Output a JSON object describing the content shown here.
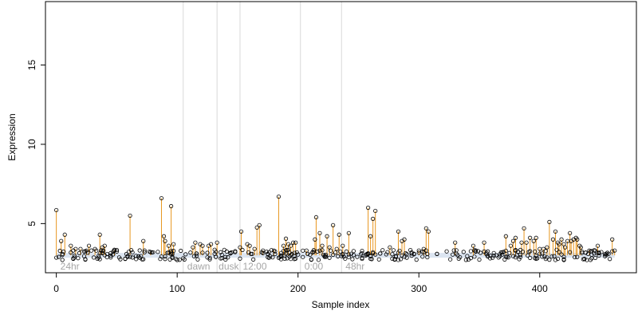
{
  "chart_data": {
    "type": "scatter",
    "title": "",
    "xlabel": "Sample index",
    "ylabel": "Expression",
    "xlim": [
      -9,
      480
    ],
    "ylim": [
      1.9,
      19.0
    ],
    "xticks": [
      0,
      100,
      200,
      300,
      400
    ],
    "yticks": [
      5,
      10,
      15
    ],
    "baseline": 3.0,
    "colors": {
      "stem": "#e8961e",
      "point_stroke": "#000000",
      "point_fill": "none",
      "phase_line": "#d9d9d9",
      "phase_text": "#a6a6a6",
      "band": "#9bb5d6"
    },
    "phase_boundaries": [
      0,
      105,
      133,
      152,
      202,
      236
    ],
    "phase_labels": [
      {
        "label": "24hr",
        "x": 2
      },
      {
        "label": "dawn",
        "x": 107
      },
      {
        "label": "dusk",
        "x": 133
      },
      {
        "label": "12:00",
        "x": 153
      },
      {
        "label": "0:00",
        "x": 204
      },
      {
        "label": "48hr",
        "x": 238
      }
    ],
    "highlight_points": [
      [
        0,
        5.85
      ],
      [
        4,
        3.9
      ],
      [
        7,
        4.3
      ],
      [
        12,
        3.6
      ],
      [
        16,
        3.4
      ],
      [
        20,
        3.4
      ],
      [
        25,
        3.3
      ],
      [
        27,
        3.6
      ],
      [
        32,
        3.4
      ],
      [
        36,
        4.3
      ],
      [
        38,
        3.5
      ],
      [
        40,
        3.6
      ],
      [
        48,
        3.3
      ],
      [
        61,
        5.5
      ],
      [
        72,
        3.9
      ],
      [
        78,
        3.2
      ],
      [
        87,
        6.6
      ],
      [
        89,
        4.2
      ],
      [
        90,
        3.9
      ],
      [
        93,
        3.6
      ],
      [
        95,
        6.1
      ],
      [
        97,
        3.7
      ],
      [
        113,
        3.5
      ],
      [
        115,
        3.8
      ],
      [
        119,
        3.7
      ],
      [
        121,
        3.6
      ],
      [
        126,
        3.6
      ],
      [
        128,
        3.7
      ],
      [
        133,
        3.8
      ],
      [
        152,
        3.5
      ],
      [
        153,
        4.5
      ],
      [
        158,
        3.7
      ],
      [
        160,
        3.6
      ],
      [
        164,
        3.4
      ],
      [
        166,
        4.75
      ],
      [
        168,
        4.9
      ],
      [
        171,
        3.3
      ],
      [
        180,
        3.3
      ],
      [
        184,
        6.7
      ],
      [
        186,
        3.0
      ],
      [
        188,
        3.6
      ],
      [
        190,
        4.05
      ],
      [
        192,
        3.7
      ],
      [
        194,
        3.6
      ],
      [
        196,
        3.8
      ],
      [
        198,
        3.8
      ],
      [
        207,
        3.3
      ],
      [
        212,
        3.2
      ],
      [
        214,
        4.0
      ],
      [
        215,
        5.4
      ],
      [
        218,
        4.4
      ],
      [
        220,
        3.6
      ],
      [
        224,
        4.2
      ],
      [
        226,
        3.5
      ],
      [
        229,
        4.9
      ],
      [
        232,
        3.4
      ],
      [
        234,
        4.3
      ],
      [
        237,
        3.6
      ],
      [
        242,
        4.4
      ],
      [
        258,
        6.0
      ],
      [
        260,
        4.2
      ],
      [
        262,
        5.3
      ],
      [
        264,
        5.8
      ],
      [
        276,
        3.5
      ],
      [
        283,
        4.5
      ],
      [
        286,
        3.9
      ],
      [
        288,
        4.0
      ],
      [
        300,
        3.3
      ],
      [
        304,
        3.4
      ],
      [
        306,
        4.7
      ],
      [
        308,
        4.5
      ],
      [
        330,
        3.8
      ],
      [
        345,
        3.6
      ],
      [
        354,
        3.8
      ],
      [
        372,
        4.2
      ],
      [
        376,
        3.6
      ],
      [
        378,
        3.9
      ],
      [
        380,
        4.1
      ],
      [
        385,
        3.8
      ],
      [
        387,
        4.7
      ],
      [
        389,
        3.8
      ],
      [
        392,
        4.1
      ],
      [
        395,
        3.9
      ],
      [
        397,
        4.1
      ],
      [
        400,
        3.4
      ],
      [
        403,
        3.4
      ],
      [
        406,
        3.5
      ],
      [
        408,
        5.1
      ],
      [
        411,
        4.0
      ],
      [
        413,
        4.5
      ],
      [
        415,
        3.8
      ],
      [
        416,
        3.7
      ],
      [
        418,
        4.0
      ],
      [
        420,
        3.7
      ],
      [
        421,
        3.5
      ],
      [
        423,
        3.9
      ],
      [
        425,
        4.4
      ],
      [
        426,
        3.9
      ],
      [
        428,
        4.0
      ],
      [
        430,
        4.1
      ],
      [
        431,
        4.0
      ],
      [
        433,
        3.6
      ],
      [
        434,
        3.5
      ],
      [
        441,
        3.3
      ],
      [
        448,
        3.6
      ],
      [
        460,
        4.0
      ],
      [
        462,
        3.3
      ]
    ],
    "background_seed": 17,
    "background_n": 380,
    "background_range": [
      2.7,
      3.35
    ]
  }
}
